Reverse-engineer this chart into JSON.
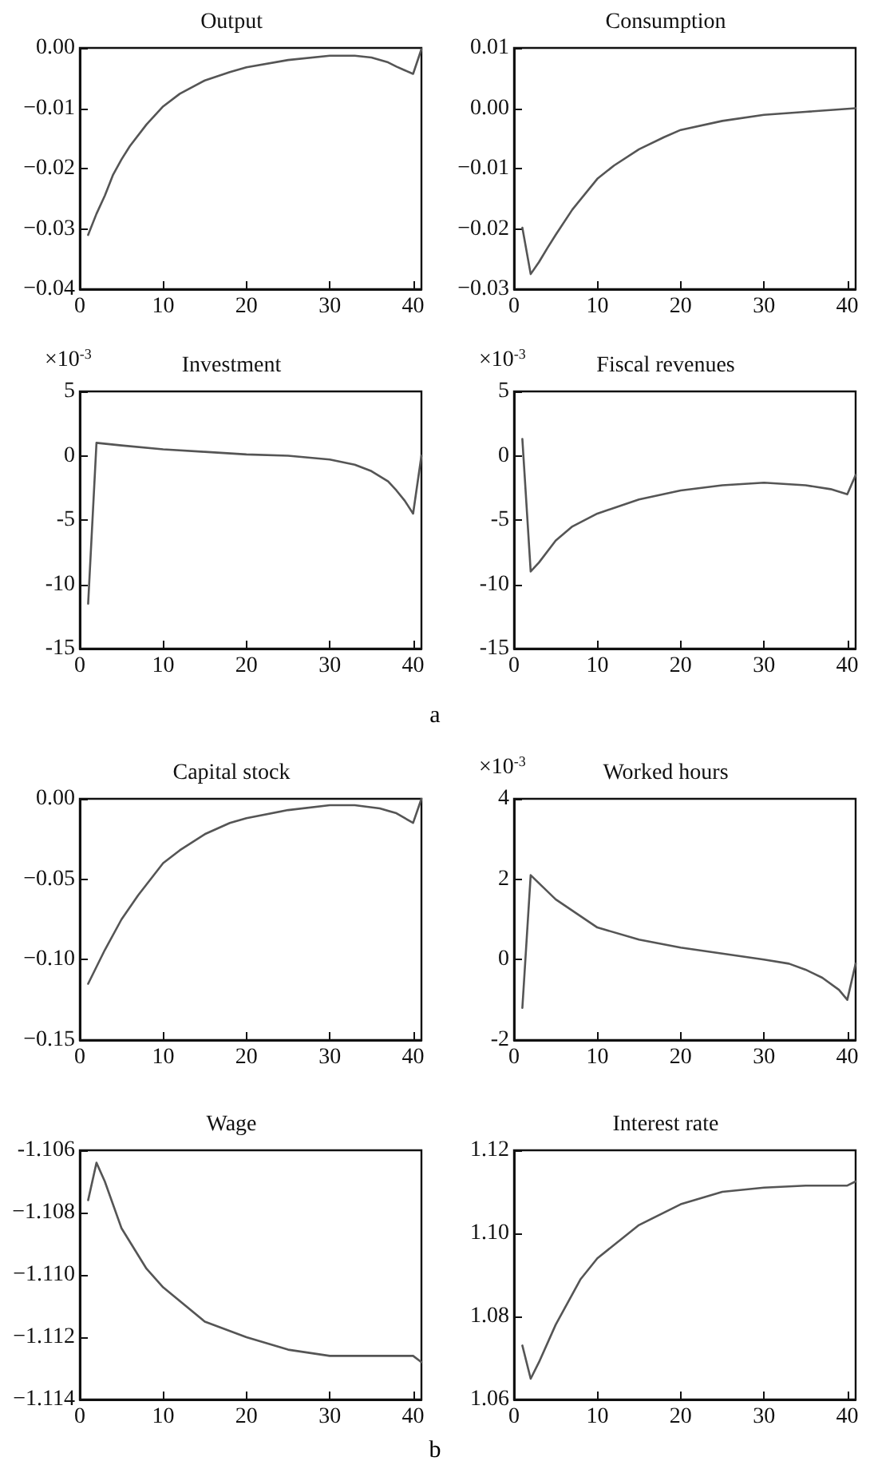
{
  "chart_data": [
    {
      "type": "line",
      "title": "Output",
      "xlim": [
        0,
        41
      ],
      "xticks": [
        0,
        10,
        20,
        30,
        40
      ],
      "ylim": [
        -0.04,
        0
      ],
      "yticks": [
        {
          "value": -0.04,
          "label": "−0.04"
        },
        {
          "value": -0.03,
          "label": "−0.03"
        },
        {
          "value": -0.02,
          "label": "−0.02"
        },
        {
          "value": -0.01,
          "label": "−0.01"
        },
        {
          "value": 0,
          "label": "0.00"
        }
      ],
      "grid": false,
      "marker": "none",
      "line_style": "solid",
      "series": [
        {
          "color": "#555555",
          "x": [
            1,
            2,
            3,
            4,
            5,
            6,
            8,
            10,
            12,
            15,
            18,
            20,
            25,
            30,
            33,
            35,
            37,
            38,
            39,
            40,
            41
          ],
          "values": [
            -0.031,
            -0.0275,
            -0.0245,
            -0.021,
            -0.0185,
            -0.0163,
            -0.0127,
            -0.0097,
            -0.0076,
            -0.0054,
            -0.004,
            -0.0032,
            -0.002,
            -0.0013,
            -0.0013,
            -0.0016,
            -0.0024,
            -0.0031,
            -0.0037,
            -0.0043,
            -0.0002
          ]
        }
      ]
    },
    {
      "type": "line",
      "title": "Consumption",
      "xlim": [
        0,
        41
      ],
      "xticks": [
        0,
        10,
        20,
        30,
        40
      ],
      "ylim": [
        -0.03,
        0.01
      ],
      "yticks": [
        {
          "value": -0.03,
          "label": "−0.03"
        },
        {
          "value": -0.02,
          "label": "−0.02"
        },
        {
          "value": -0.01,
          "label": "−0.01"
        },
        {
          "value": 0,
          "label": "0.00"
        },
        {
          "value": 0.01,
          "label": "0.01"
        }
      ],
      "grid": false,
      "marker": "none",
      "line_style": "solid",
      "series": [
        {
          "color": "#555555",
          "x": [
            1,
            2,
            3,
            4,
            5,
            7,
            10,
            12,
            15,
            18,
            20,
            25,
            30,
            35,
            41
          ],
          "values": [
            -0.0198,
            -0.0275,
            -0.0255,
            -0.0232,
            -0.021,
            -0.0168,
            -0.0117,
            -0.0095,
            -0.0068,
            -0.0048,
            -0.0036,
            -0.0021,
            -0.0011,
            -0.0006,
            0.0
          ]
        }
      ]
    },
    {
      "type": "line",
      "title": "Investment",
      "ylabel": "×10$^{-3}$",
      "xlim": [
        0,
        41
      ],
      "xticks": [
        0,
        10,
        20,
        30,
        40
      ],
      "ylim": [
        -15,
        5
      ],
      "yticks": [
        -15,
        -10,
        -5,
        0,
        5
      ],
      "grid": false,
      "marker": "none",
      "line_style": "solid",
      "series": [
        {
          "color": "#555555",
          "x": [
            1,
            2,
            5,
            10,
            15,
            20,
            25,
            30,
            33,
            35,
            37,
            38,
            39,
            40,
            41
          ],
          "values": [
            -11.5,
            1.0,
            0.8,
            0.5,
            0.3,
            0.1,
            0.0,
            -0.3,
            -0.7,
            -1.2,
            -2.0,
            -2.7,
            -3.5,
            -4.5,
            0.0
          ]
        }
      ]
    },
    {
      "type": "line",
      "title": "Fiscal revenues",
      "ylabel": "×10$^{-3}$",
      "annotations": [
        "a"
      ],
      "xlim": [
        0,
        41
      ],
      "xticks": [
        0,
        10,
        20,
        30,
        40
      ],
      "ylim": [
        -15,
        5
      ],
      "yticks": [
        -15,
        -10,
        -5,
        0,
        5
      ],
      "grid": false,
      "marker": "none",
      "line_style": "solid",
      "series": [
        {
          "color": "#555555",
          "x": [
            1,
            2,
            3,
            5,
            7,
            10,
            15,
            20,
            25,
            30,
            35,
            38,
            40,
            41
          ],
          "values": [
            1.3,
            -9.0,
            -8.3,
            -6.6,
            -5.5,
            -4.5,
            -3.4,
            -2.7,
            -2.3,
            -2.1,
            -2.3,
            -2.6,
            -3.0,
            -1.5
          ]
        }
      ]
    },
    {
      "type": "line",
      "title": "Capital stock",
      "xlim": [
        0,
        41
      ],
      "xticks": [
        0,
        10,
        20,
        30,
        40
      ],
      "ylim": [
        -0.15,
        0
      ],
      "yticks": [
        {
          "value": -0.15,
          "label": "−0.15"
        },
        {
          "value": -0.1,
          "label": "−0.10"
        },
        {
          "value": -0.05,
          "label": "−0.05"
        },
        {
          "value": 0,
          "label": "0.00"
        }
      ],
      "grid": false,
      "marker": "none",
      "line_style": "solid",
      "series": [
        {
          "color": "#555555",
          "x": [
            1,
            3,
            5,
            7,
            10,
            12,
            15,
            18,
            20,
            25,
            30,
            33,
            36,
            38,
            40,
            41
          ],
          "values": [
            -0.115,
            -0.094,
            -0.075,
            -0.06,
            -0.04,
            -0.032,
            -0.022,
            -0.015,
            -0.012,
            -0.007,
            -0.004,
            -0.004,
            -0.006,
            -0.009,
            -0.015,
            0.0
          ]
        }
      ]
    },
    {
      "type": "line",
      "title": "Worked hours",
      "ylabel": "×10$^{-3}$",
      "xlim": [
        0,
        41
      ],
      "xticks": [
        0,
        10,
        20,
        30,
        40
      ],
      "ylim": [
        -2,
        4
      ],
      "yticks": [
        -2,
        0,
        2,
        4
      ],
      "grid": false,
      "marker": "none",
      "line_style": "solid",
      "series": [
        {
          "color": "#555555",
          "x": [
            1,
            2,
            5,
            10,
            15,
            20,
            25,
            30,
            33,
            35,
            37,
            39,
            40,
            41
          ],
          "values": [
            -1.2,
            2.1,
            1.5,
            0.8,
            0.5,
            0.3,
            0.15,
            0.0,
            -0.1,
            -0.25,
            -0.45,
            -0.75,
            -1.0,
            -0.1
          ]
        }
      ]
    },
    {
      "type": "line",
      "title": "Wage",
      "xlim": [
        0,
        41
      ],
      "xticks": [
        0,
        10,
        20,
        30,
        40
      ],
      "ylim": [
        -1.114,
        -1.106
      ],
      "yticks": [
        {
          "value": -1.114,
          "label": "−1.114"
        },
        {
          "value": -1.112,
          "label": "−1.112"
        },
        {
          "value": -1.11,
          "label": "−1.110"
        },
        {
          "value": -1.108,
          "label": "−1.108"
        },
        {
          "value": -1.106,
          "label": "-1.106"
        }
      ],
      "grid": false,
      "marker": "none",
      "line_style": "solid",
      "series": [
        {
          "color": "#555555",
          "x": [
            1,
            2,
            3,
            5,
            8,
            10,
            15,
            20,
            25,
            30,
            35,
            40,
            41
          ],
          "values": [
            -1.1076,
            -1.1064,
            -1.107,
            -1.1085,
            -1.1098,
            -1.1104,
            -1.1115,
            -1.112,
            -1.1124,
            -1.1126,
            -1.1126,
            -1.1126,
            -1.1128
          ]
        }
      ]
    },
    {
      "type": "line",
      "title": "Interest rate",
      "annotations": [
        "b"
      ],
      "xlim": [
        0,
        41
      ],
      "xticks": [
        0,
        10,
        20,
        30,
        40
      ],
      "ylim": [
        1.06,
        1.12
      ],
      "yticks": [
        {
          "value": 1.06,
          "label": "1.06"
        },
        {
          "value": 1.08,
          "label": "1.08"
        },
        {
          "value": 1.1,
          "label": "1.10"
        },
        {
          "value": 1.12,
          "label": "1.12"
        }
      ],
      "grid": false,
      "marker": "none",
      "line_style": "solid",
      "series": [
        {
          "color": "#555555",
          "x": [
            1,
            2,
            3,
            5,
            8,
            10,
            15,
            20,
            25,
            30,
            35,
            40,
            41
          ],
          "values": [
            1.073,
            1.065,
            1.069,
            1.078,
            1.089,
            1.094,
            1.102,
            1.107,
            1.11,
            1.111,
            1.1115,
            1.1115,
            1.1125
          ]
        }
      ]
    }
  ]
}
